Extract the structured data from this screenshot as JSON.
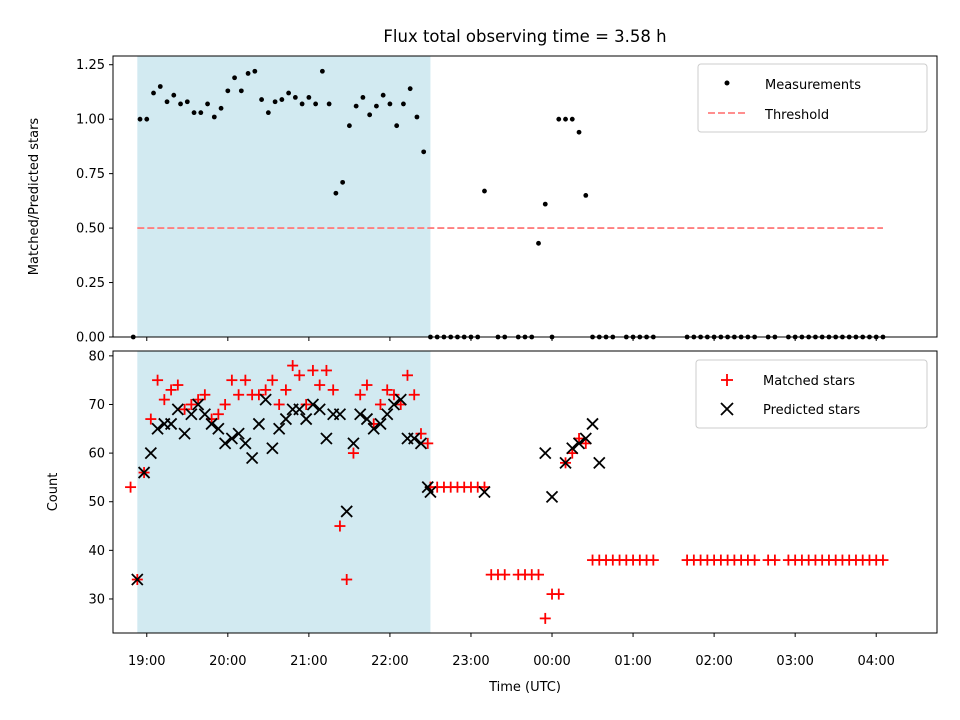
{
  "title": "Flux total observing time = 3.58 h",
  "colors": {
    "shade": "#add8e6",
    "measurement": "#000000",
    "threshold": "#ff7f7f",
    "matched": "#ff0000",
    "predicted": "#000000"
  },
  "chart_data": [
    {
      "type": "scatter",
      "ylabel": "Matched/Predicted stars",
      "ylim": [
        0,
        1.29
      ],
      "yticks": [
        0.0,
        0.25,
        0.5,
        0.75,
        1.0,
        1.25
      ],
      "ytick_labels": [
        "0.00",
        "0.25",
        "0.50",
        "0.75",
        "1.00",
        "1.25"
      ],
      "shaded_interval": [
        "18:53",
        "22:30"
      ],
      "legend": {
        "placement": "top-right",
        "entries": [
          "Measurements",
          "Threshold"
        ]
      },
      "threshold": {
        "name": "Threshold",
        "y": 0.5,
        "x_range": [
          "18:53",
          "04:05"
        ]
      },
      "series": [
        {
          "name": "Measurements",
          "marker": "dot",
          "x": [
            "18:50",
            "18:55",
            "19:00",
            "19:05",
            "19:10",
            "19:15",
            "19:20",
            "19:25",
            "19:30",
            "19:35",
            "19:40",
            "19:45",
            "19:50",
            "19:55",
            "20:00",
            "20:05",
            "20:10",
            "20:15",
            "20:20",
            "20:25",
            "20:30",
            "20:35",
            "20:40",
            "20:45",
            "20:50",
            "20:55",
            "21:00",
            "21:05",
            "21:10",
            "21:15",
            "21:20",
            "21:25",
            "21:30",
            "21:35",
            "21:40",
            "21:45",
            "21:50",
            "21:55",
            "22:00",
            "22:05",
            "22:10",
            "22:15",
            "22:20",
            "22:25",
            "22:30",
            "22:35",
            "22:40",
            "22:45",
            "22:50",
            "22:55",
            "23:00",
            "23:05",
            "23:10",
            "23:20",
            "23:25",
            "23:35",
            "23:40",
            "23:45",
            "23:50",
            "23:55",
            "00:00",
            "00:05",
            "00:10",
            "00:15",
            "00:20",
            "00:25",
            "00:30",
            "00:35",
            "00:40",
            "00:45",
            "00:55",
            "01:00",
            "01:05",
            "01:10",
            "01:15",
            "01:40",
            "01:45",
            "01:50",
            "01:55",
            "02:00",
            "02:05",
            "02:10",
            "02:15",
            "02:20",
            "02:25",
            "02:30",
            "02:40",
            "02:45",
            "02:55",
            "03:00",
            "03:05",
            "03:10",
            "03:15",
            "03:20",
            "03:25",
            "03:30",
            "03:35",
            "03:40",
            "03:45",
            "03:50",
            "03:55",
            "04:00",
            "04:05"
          ],
          "y": [
            0.0,
            1.0,
            1.0,
            1.12,
            1.15,
            1.08,
            1.11,
            1.07,
            1.08,
            1.03,
            1.03,
            1.07,
            1.01,
            1.05,
            1.13,
            1.19,
            1.13,
            1.21,
            1.22,
            1.09,
            1.03,
            1.08,
            1.09,
            1.12,
            1.1,
            1.07,
            1.1,
            1.07,
            1.22,
            1.07,
            0.66,
            0.71,
            0.97,
            1.06,
            1.1,
            1.02,
            1.06,
            1.11,
            1.07,
            0.97,
            1.07,
            1.14,
            1.01,
            0.85,
            0.0,
            0.0,
            0.0,
            0.0,
            0.0,
            0.0,
            0.0,
            0.0,
            0.67,
            0.0,
            0.0,
            0.0,
            0.0,
            0.0,
            0.43,
            0.61,
            0.0,
            1.0,
            1.0,
            1.0,
            0.94,
            0.65,
            0.0,
            0.0,
            0.0,
            0.0,
            0.0,
            0.0,
            0.0,
            0.0,
            0.0,
            0.0,
            0.0,
            0.0,
            0.0,
            0.0,
            0.0,
            0.0,
            0.0,
            0.0,
            0.0,
            0.0,
            0.0,
            0.0,
            0.0,
            0.0,
            0.0,
            0.0,
            0.0,
            0.0,
            0.0,
            0.0,
            0.0,
            0.0,
            0.0,
            0.0,
            0.0,
            0.0,
            0.0
          ]
        }
      ]
    },
    {
      "type": "scatter",
      "xlabel": "Time (UTC)",
      "ylabel": "Count",
      "ylim": [
        23,
        81
      ],
      "yticks": [
        30,
        40,
        50,
        60,
        70,
        80
      ],
      "xticks": [
        "19:00",
        "20:00",
        "21:00",
        "22:00",
        "23:00",
        "00:00",
        "01:00",
        "02:00",
        "03:00",
        "04:00"
      ],
      "x_range": [
        "18:35",
        "04:45"
      ],
      "legend": {
        "placement": "top-right",
        "entries": [
          "Matched stars",
          "Predicted stars"
        ]
      },
      "series": [
        {
          "name": "Matched stars",
          "marker": "plus",
          "x": [
            "18:48",
            "18:53",
            "18:58",
            "19:03",
            "19:08",
            "19:13",
            "19:18",
            "19:23",
            "19:28",
            "19:33",
            "19:38",
            "19:43",
            "19:48",
            "19:53",
            "19:58",
            "20:03",
            "20:08",
            "20:13",
            "20:18",
            "20:23",
            "20:28",
            "20:33",
            "20:38",
            "20:43",
            "20:48",
            "20:53",
            "20:58",
            "21:03",
            "21:08",
            "21:13",
            "21:18",
            "21:23",
            "21:28",
            "21:33",
            "21:38",
            "21:43",
            "21:48",
            "21:53",
            "21:58",
            "22:03",
            "22:08",
            "22:13",
            "22:18",
            "22:23",
            "22:28",
            "22:30",
            "22:35",
            "22:40",
            "22:45",
            "22:50",
            "22:55",
            "23:00",
            "23:05",
            "23:10",
            "23:15",
            "23:20",
            "23:25",
            "23:35",
            "23:40",
            "23:45",
            "23:50",
            "23:55",
            "00:00",
            "00:05",
            "00:10",
            "00:15",
            "00:20",
            "00:25",
            "00:30",
            "00:35",
            "00:40",
            "00:45",
            "00:50",
            "00:55",
            "01:00",
            "01:05",
            "01:10",
            "01:15",
            "01:40",
            "01:45",
            "01:50",
            "01:55",
            "02:00",
            "02:05",
            "02:10",
            "02:15",
            "02:20",
            "02:25",
            "02:30",
            "02:40",
            "02:45",
            "02:55",
            "03:00",
            "03:05",
            "03:10",
            "03:15",
            "03:20",
            "03:25",
            "03:30",
            "03:35",
            "03:40",
            "03:45",
            "03:50",
            "03:55",
            "04:00",
            "04:05"
          ],
          "y": [
            53,
            34,
            56,
            67,
            75,
            71,
            73,
            74,
            69,
            70,
            71,
            72,
            67,
            68,
            70,
            75,
            72,
            75,
            72,
            72,
            73,
            75,
            70,
            73,
            78,
            76,
            70,
            77,
            74,
            77,
            73,
            45,
            34,
            60,
            72,
            74,
            66,
            70,
            73,
            72,
            70,
            76,
            72,
            64,
            62,
            53,
            53,
            53,
            53,
            53,
            53,
            53,
            53,
            53,
            35,
            35,
            35,
            35,
            35,
            35,
            35,
            26,
            31,
            31,
            58,
            60,
            63,
            62,
            38,
            38,
            38,
            38,
            38,
            38,
            38,
            38,
            38,
            38,
            38,
            38,
            38,
            38,
            38,
            38,
            38,
            38,
            38,
            38,
            38,
            38,
            38,
            38,
            38,
            38,
            38,
            38,
            38,
            38,
            38,
            38,
            38,
            38,
            38,
            38,
            38,
            38
          ]
        },
        {
          "name": "Predicted stars",
          "marker": "x",
          "x": [
            "18:53",
            "18:58",
            "19:03",
            "19:08",
            "19:13",
            "19:18",
            "19:23",
            "19:28",
            "19:33",
            "19:38",
            "19:43",
            "19:48",
            "19:53",
            "19:58",
            "20:03",
            "20:08",
            "20:13",
            "20:18",
            "20:23",
            "20:28",
            "20:33",
            "20:38",
            "20:43",
            "20:48",
            "20:53",
            "20:58",
            "21:03",
            "21:08",
            "21:13",
            "21:18",
            "21:23",
            "21:28",
            "21:33",
            "21:38",
            "21:43",
            "21:48",
            "21:53",
            "21:58",
            "22:03",
            "22:08",
            "22:13",
            "22:18",
            "22:23",
            "22:28",
            "22:30",
            "23:10",
            "23:55",
            "00:00",
            "00:10",
            "00:15",
            "00:20",
            "00:25",
            "00:30",
            "00:35"
          ],
          "y": [
            34,
            56,
            60,
            65,
            66,
            66,
            69,
            64,
            68,
            70,
            68,
            66,
            65,
            62,
            63,
            64,
            62,
            59,
            66,
            71,
            61,
            65,
            67,
            69,
            69,
            67,
            70,
            69,
            63,
            68,
            68,
            48,
            62,
            68,
            67,
            65,
            66,
            68,
            70,
            71,
            63,
            63,
            62,
            53,
            52,
            52,
            60,
            51,
            58,
            61,
            62,
            63,
            66,
            58
          ]
        }
      ]
    }
  ]
}
